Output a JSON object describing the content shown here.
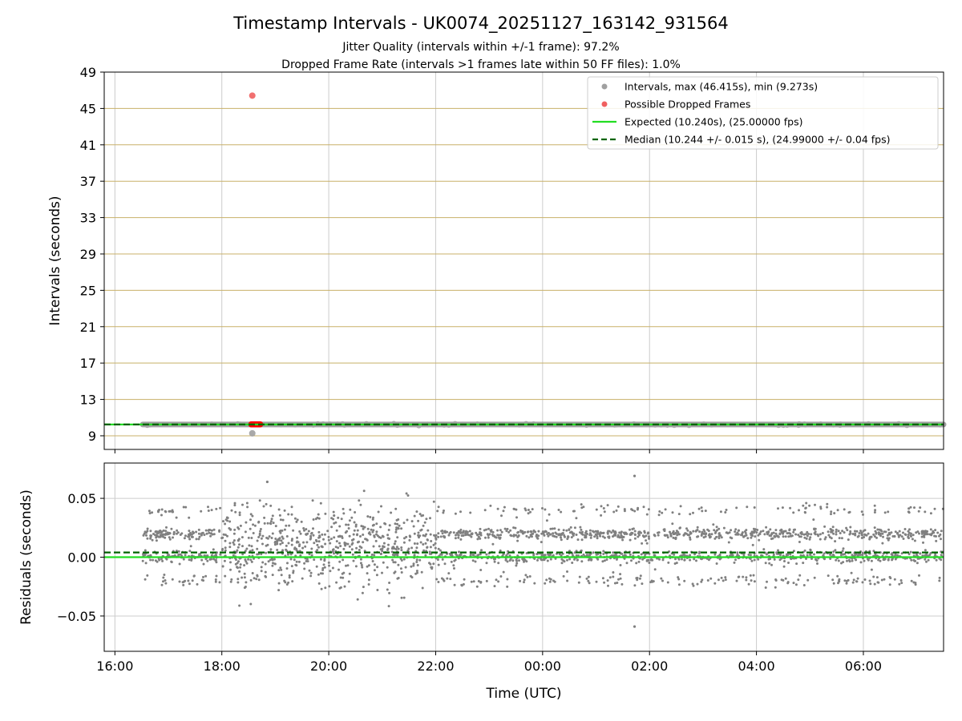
{
  "figure": {
    "title": "Timestamp Intervals - UK0074_20251127_163142_931564",
    "subtitle1": "Jitter Quality (intervals within +/-1 frame): 97.2%",
    "subtitle2": "Dropped Frame Rate (intervals >1 frames late within 50 FF files): 1.0%"
  },
  "colors": {
    "intervals": "#808080",
    "dropped": "#ff0000",
    "expected": "#22dd22",
    "median": "#006400",
    "hgrid_top": "#c8b068",
    "grid": "#cccccc"
  },
  "chart_data": [
    {
      "type": "scatter",
      "name": "intervals",
      "ylabel": "Intervals (seconds)",
      "xlim_hours": [
        15.8,
        31.5
      ],
      "ylim": [
        7.5,
        49
      ],
      "yticks": [
        "9",
        "13",
        "17",
        "21",
        "25",
        "29",
        "33",
        "37",
        "41",
        "45",
        "49"
      ],
      "ytick_values": [
        9,
        13,
        17,
        21,
        25,
        29,
        33,
        37,
        41,
        45,
        49
      ],
      "xtick_values_hours": [
        16,
        18,
        20,
        22,
        24,
        26,
        28,
        30
      ],
      "legend": {
        "position": "top-right",
        "entries": [
          {
            "label": "Intervals, max (46.415s), min (9.273s)",
            "kind": "marker",
            "color": "#a0a0a0"
          },
          {
            "label": "Possible Dropped Frames",
            "kind": "marker",
            "color": "#f06060"
          },
          {
            "label": "Expected (10.240s), (25.00000 fps)",
            "kind": "line",
            "color": "#22dd22"
          },
          {
            "label": "Median (10.244 +/- 0.015 s), (24.99000 +/- 0.04 fps)",
            "kind": "dashed",
            "color": "#006400"
          }
        ]
      },
      "expected": 10.24,
      "median": 10.244,
      "data_start_hours": 16.52,
      "data_end_hours": 31.5,
      "outlier_points": [
        {
          "x_hours": 18.57,
          "y": 46.415,
          "series": "dropped"
        },
        {
          "x_hours": 18.57,
          "y": 9.273,
          "series": "intervals"
        }
      ],
      "dropped_cluster_hours": [
        18.55,
        18.72
      ],
      "dropped_cluster_y": 10.26
    },
    {
      "type": "scatter",
      "name": "residuals",
      "ylabel": "Residuals (seconds)",
      "xlabel": "Time (UTC)",
      "xlim_hours": [
        15.8,
        31.5
      ],
      "ylim": [
        -0.08,
        0.08
      ],
      "yticks": [
        "0.05",
        "0.00",
        "−0.05"
      ],
      "ytick_values": [
        0.05,
        0.0,
        -0.05
      ],
      "xticks": [
        "16:00",
        "18:00",
        "20:00",
        "22:00",
        "00:00",
        "02:00",
        "04:00",
        "06:00"
      ],
      "xtick_values_hours": [
        16,
        18,
        20,
        22,
        24,
        26,
        28,
        30
      ],
      "expected_residual": 0.0,
      "median_residual": 0.004,
      "residual_levels": [
        0.02,
        0.0,
        -0.02,
        0.04
      ],
      "notable_points": [
        {
          "x_hours": 18.85,
          "y": 0.064
        },
        {
          "x_hours": 25.72,
          "y": 0.069
        },
        {
          "x_hours": 25.72,
          "y": -0.059
        }
      ]
    }
  ]
}
